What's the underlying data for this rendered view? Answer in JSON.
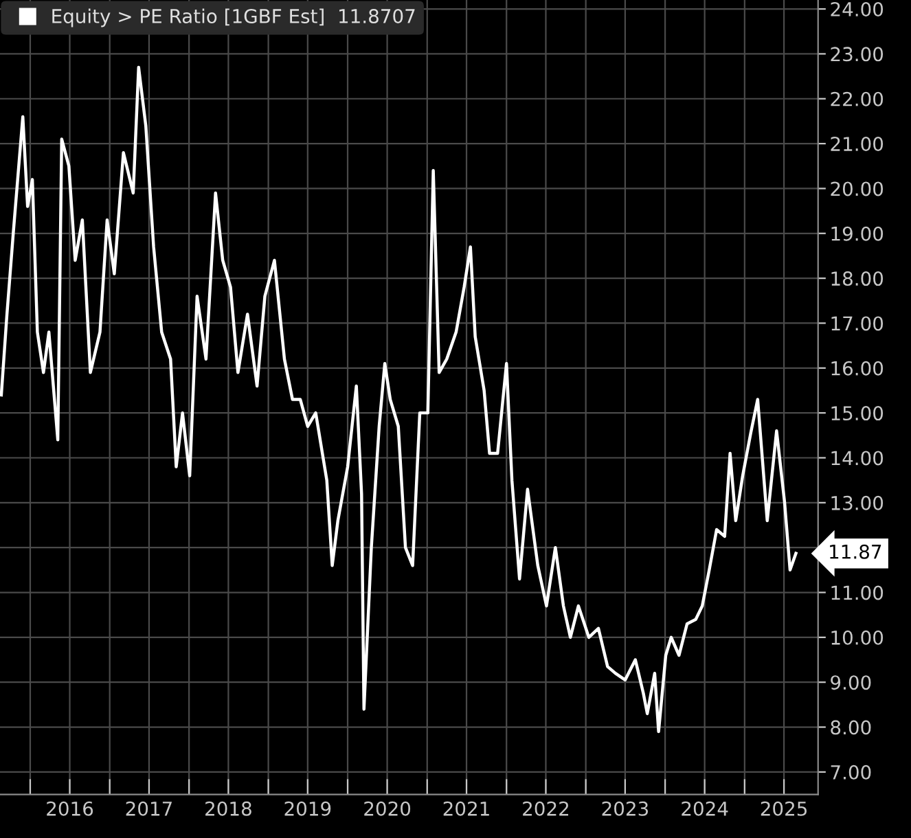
{
  "chart_data": {
    "type": "line",
    "x": [
      "2015-08-21",
      "2015-09-16",
      "2015-10-15",
      "2015-11-28",
      "2015-12-20",
      "2016-01-11",
      "2016-02-03",
      "2016-03-02",
      "2016-03-27",
      "2016-05-07",
      "2016-05-25",
      "2016-06-27",
      "2016-07-26",
      "2016-08-28",
      "2016-10-04",
      "2016-11-17",
      "2016-12-20",
      "2017-01-22",
      "2017-03-05",
      "2017-04-19",
      "2017-05-14",
      "2017-06-16",
      "2017-07-22",
      "2017-08-28",
      "2017-10-08",
      "2017-11-03",
      "2017-12-02",
      "2018-01-04",
      "2018-02-07",
      "2018-03-20",
      "2018-05-03",
      "2018-06-05",
      "2018-07-11",
      "2018-08-14",
      "2018-09-27",
      "2018-11-10",
      "2018-12-16",
      "2019-01-29",
      "2019-03-16",
      "2019-04-22",
      "2019-05-28",
      "2019-07-01",
      "2019-08-07",
      "2019-09-27",
      "2019-10-22",
      "2019-11-17",
      "2020-01-01",
      "2020-02-10",
      "2020-03-05",
      "2020-03-16",
      "2020-04-19",
      "2020-05-25",
      "2020-06-20",
      "2020-07-15",
      "2020-08-21",
      "2020-09-23",
      "2020-10-26",
      "2020-11-28",
      "2021-01-04",
      "2021-01-29",
      "2021-02-25",
      "2021-04-01",
      "2021-05-14",
      "2021-06-20",
      "2021-07-19",
      "2021-08-10",
      "2021-09-20",
      "2021-10-15",
      "2021-11-21",
      "2022-01-01",
      "2022-01-26",
      "2022-03-02",
      "2022-04-08",
      "2022-05-25",
      "2022-07-04",
      "2022-08-14",
      "2022-09-20",
      "2022-10-22",
      "2022-11-28",
      "2023-01-15",
      "2023-02-28",
      "2023-04-11",
      "2023-05-17",
      "2023-07-01",
      "2023-08-17",
      "2023-09-23",
      "2023-10-11",
      "2023-11-14",
      "2023-12-02",
      "2024-01-04",
      "2024-01-29",
      "2024-03-05",
      "2024-04-11",
      "2024-05-21",
      "2024-06-20",
      "2024-07-22",
      "2024-08-25",
      "2024-10-01",
      "2024-10-26",
      "2024-11-21",
      "2024-12-23",
      "2025-01-29",
      "2025-03-02",
      "2025-04-15",
      "2025-05-28",
      "2025-07-04",
      "2025-07-29",
      "2025-08-25"
    ],
    "series": [
      {
        "name": "Equity > PE Ratio [1GBF Est]  11.8707",
        "color": "#ffffff",
        "values": [
          15.4,
          17.2,
          19.0,
          21.6,
          19.6,
          20.2,
          16.8,
          15.9,
          16.8,
          14.4,
          21.1,
          20.5,
          18.4,
          19.3,
          15.9,
          16.8,
          19.3,
          18.1,
          20.8,
          19.9,
          22.7,
          21.4,
          18.7,
          16.8,
          16.2,
          13.8,
          15.0,
          13.6,
          17.6,
          16.2,
          19.9,
          18.4,
          17.8,
          15.9,
          17.2,
          15.6,
          17.6,
          18.4,
          16.2,
          15.3,
          15.3,
          14.7,
          15.0,
          13.5,
          11.6,
          12.6,
          13.8,
          15.6,
          13.2,
          8.4,
          12.0,
          14.7,
          16.1,
          15.3,
          14.7,
          12.0,
          11.6,
          15.0,
          15.0,
          20.4,
          15.9,
          16.2,
          16.8,
          17.8,
          18.7,
          16.7,
          15.5,
          14.1,
          14.1,
          16.1,
          13.5,
          11.3,
          13.3,
          11.6,
          10.7,
          12.0,
          10.7,
          10.0,
          10.7,
          10.0,
          10.2,
          9.35,
          9.2,
          9.05,
          9.5,
          8.75,
          8.3,
          9.2,
          7.9,
          9.6,
          10.0,
          9.6,
          10.3,
          10.4,
          10.7,
          11.5,
          12.4,
          12.25,
          14.1,
          12.6,
          13.6,
          14.55,
          15.3,
          12.6,
          14.6,
          13.0,
          11.5,
          11.87
        ]
      }
    ],
    "xlim": [
      "2015-08-15",
      "2025-12-05"
    ],
    "xticks": [
      {
        "value": "2016-01-01",
        "label": null
      },
      {
        "value": "2016-07-01",
        "label": "2016"
      },
      {
        "value": "2017-01-01",
        "label": null
      },
      {
        "value": "2017-07-01",
        "label": "2017"
      },
      {
        "value": "2018-01-01",
        "label": null
      },
      {
        "value": "2018-07-01",
        "label": "2018"
      },
      {
        "value": "2019-01-01",
        "label": null
      },
      {
        "value": "2019-07-01",
        "label": "2019"
      },
      {
        "value": "2020-01-01",
        "label": null
      },
      {
        "value": "2020-07-01",
        "label": "2020"
      },
      {
        "value": "2021-01-01",
        "label": null
      },
      {
        "value": "2021-07-01",
        "label": "2021"
      },
      {
        "value": "2022-01-01",
        "label": null
      },
      {
        "value": "2022-07-01",
        "label": "2022"
      },
      {
        "value": "2023-01-01",
        "label": null
      },
      {
        "value": "2023-07-01",
        "label": "2023"
      },
      {
        "value": "2024-01-01",
        "label": null
      },
      {
        "value": "2024-07-01",
        "label": "2024"
      },
      {
        "value": "2025-01-01",
        "label": null
      },
      {
        "value": "2025-07-01",
        "label": "2025"
      }
    ],
    "ylim": [
      6.5,
      24.2
    ],
    "yticks": [
      {
        "value": 7,
        "label": "7.00"
      },
      {
        "value": 8,
        "label": "8.00"
      },
      {
        "value": 9,
        "label": "9.00"
      },
      {
        "value": 10,
        "label": "10.00"
      },
      {
        "value": 11,
        "label": "11.00"
      },
      {
        "value": 12,
        "label": null
      },
      {
        "value": 13,
        "label": "13.00"
      },
      {
        "value": 14,
        "label": "14.00"
      },
      {
        "value": 15,
        "label": "15.00"
      },
      {
        "value": 16,
        "label": "16.00"
      },
      {
        "value": 17,
        "label": "17.00"
      },
      {
        "value": 18,
        "label": "18.00"
      },
      {
        "value": 19,
        "label": "19.00"
      },
      {
        "value": 20,
        "label": "20.00"
      },
      {
        "value": 21,
        "label": "21.00"
      },
      {
        "value": 22,
        "label": "22.00"
      },
      {
        "value": 23,
        "label": "23.00"
      },
      {
        "value": 24,
        "label": "24.00"
      }
    ],
    "annotations": [
      {
        "text": "11.87",
        "x": "2025-08-25",
        "y": 11.87
      }
    ],
    "grid": true,
    "legend": "top left",
    "marker": "none",
    "line_style": "solid"
  }
}
